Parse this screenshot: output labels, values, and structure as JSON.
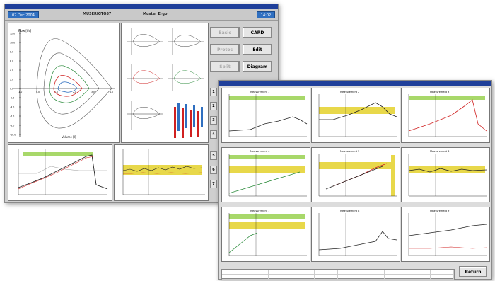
{
  "back_window": {
    "titlebar": "",
    "date": "02 Dec 2004",
    "patient_id": "MUSERIGTO57",
    "patient_name": "Muster Ergo",
    "time": "14:02",
    "fv_loop": {
      "ylabel": "Flow [l/s]",
      "xlabel": "Volume [l]",
      "y_ticks": [
        "12.0",
        "10.0",
        "8.0",
        "6.0",
        "4.0",
        "2.0",
        "0.0",
        "-2.0",
        "-4.0",
        "-6.0",
        "-8.0",
        "-10.0"
      ],
      "x_ticks": [
        "-1.0",
        "0.0",
        "1.0",
        "2.0",
        "3.0",
        "4.0"
      ]
    },
    "buttons": {
      "basic": "Basic",
      "card": "CARD",
      "protocol": "Protoc",
      "edit": "Edit",
      "split": "Split",
      "diagram": "Diagram"
    },
    "side_buttons": [
      "1",
      "2",
      "3",
      "4"
    ],
    "side_buttons_lower": [
      "5",
      "6",
      "7"
    ]
  },
  "front_window": {
    "titlebar": "",
    "charts": [
      {
        "title": "Measurement 1",
        "left_label": "",
        "right_label": ""
      },
      {
        "title": "Measurement 2",
        "left_label": "",
        "right_label": ""
      },
      {
        "title": "Measurement 3",
        "left_label": "",
        "right_label": ""
      },
      {
        "title": "Measurement 4",
        "left_label": "",
        "right_label": ""
      },
      {
        "title": "Measurement 5",
        "left_label": "",
        "right_label": ""
      },
      {
        "title": "Measurement 6",
        "left_label": "",
        "right_label": ""
      },
      {
        "title": "Measurement 7",
        "left_label": "",
        "right_label": ""
      },
      {
        "title": "Measurement 8",
        "left_label": "",
        "right_label": ""
      },
      {
        "title": "Measurement 9",
        "left_label": "",
        "right_label": ""
      }
    ],
    "return_button": "Return"
  },
  "colors": {
    "titlebar": "#1f3f9a",
    "accent_blue": "#2f6fc0",
    "band_yellow": "#e8d84a",
    "band_green": "#a8d86a",
    "line_red": "#d02020",
    "line_green": "#2a8a3a",
    "line_dark": "#222222"
  }
}
